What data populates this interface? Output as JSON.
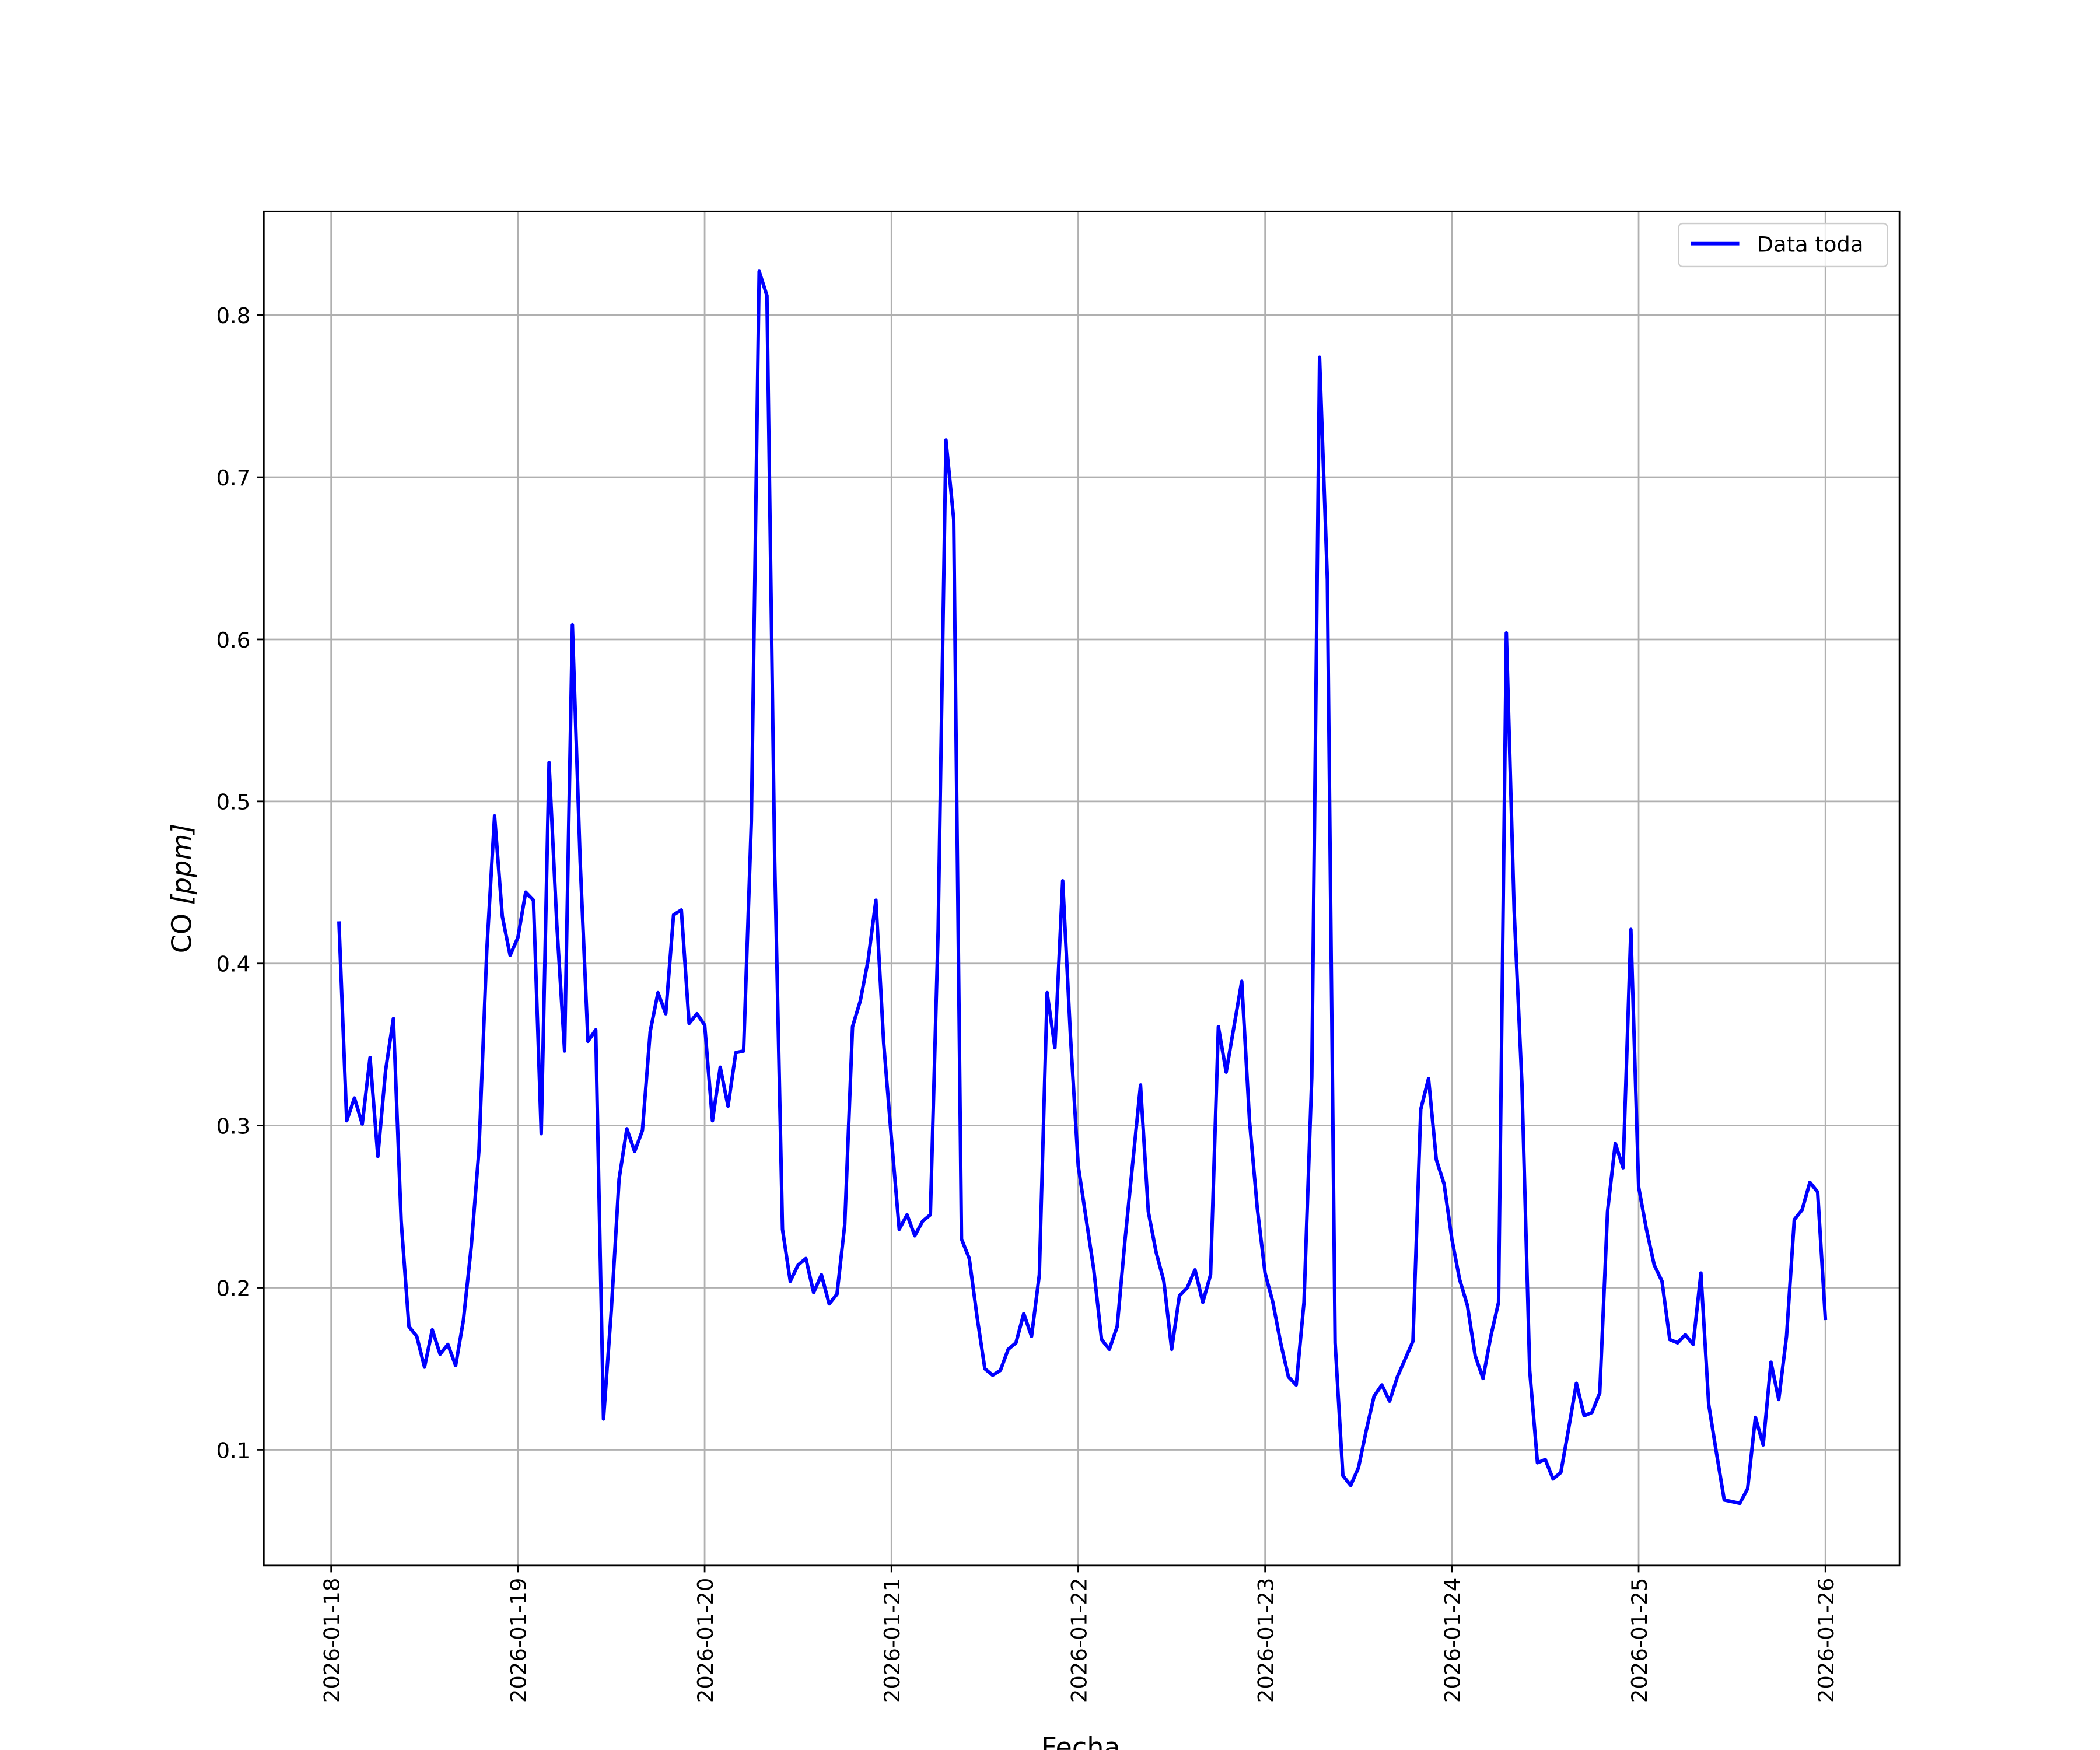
{
  "chart_data": {
    "type": "line",
    "title": "",
    "xlabel": "Fecha",
    "ylabel_main": "CO ",
    "ylabel_unit": "[ppm]",
    "ylim": [
      0.0286,
      0.864
    ],
    "xlim": [
      "2026-01-17 15:00",
      "2026-01-26 10:00"
    ],
    "grid": true,
    "legend_position": "top-right",
    "x_ticks": [
      "2026-01-18",
      "2026-01-19",
      "2026-01-20",
      "2026-01-21",
      "2026-01-22",
      "2026-01-23",
      "2026-01-24",
      "2026-01-25",
      "2026-01-26"
    ],
    "y_ticks": [
      "0.1",
      "0.2",
      "0.3",
      "0.4",
      "0.5",
      "0.6",
      "0.7",
      "0.8"
    ],
    "x_start": "2026-01-18 01:00",
    "x_step_hours": 1,
    "series": [
      {
        "name": "Data toda",
        "color": "#0000ff",
        "values": [
          0.426,
          0.303,
          0.317,
          0.301,
          0.342,
          0.281,
          0.334,
          0.366,
          0.241,
          0.176,
          0.17,
          0.151,
          0.174,
          0.159,
          0.165,
          0.152,
          0.18,
          0.225,
          0.285,
          0.408,
          0.491,
          0.429,
          0.405,
          0.416,
          0.444,
          0.439,
          0.295,
          0.524,
          0.424,
          0.346,
          0.609,
          0.463,
          0.352,
          0.359,
          0.119,
          0.186,
          0.267,
          0.298,
          0.284,
          0.297,
          0.358,
          0.382,
          0.369,
          0.43,
          0.433,
          0.363,
          0.369,
          0.362,
          0.303,
          0.336,
          0.312,
          0.345,
          0.346,
          0.488,
          0.827,
          0.812,
          0.463,
          0.236,
          0.204,
          0.214,
          0.218,
          0.197,
          0.208,
          0.19,
          0.196,
          0.239,
          0.361,
          0.377,
          0.402,
          0.439,
          0.351,
          0.292,
          0.236,
          0.245,
          0.232,
          0.241,
          0.245,
          0.421,
          0.723,
          0.674,
          0.23,
          0.218,
          0.182,
          0.15,
          0.146,
          0.149,
          0.162,
          0.166,
          0.184,
          0.17,
          0.208,
          0.382,
          0.348,
          0.451,
          0.355,
          0.275,
          0.243,
          0.211,
          0.168,
          0.162,
          0.176,
          0.229,
          0.277,
          0.325,
          0.247,
          0.222,
          0.204,
          0.162,
          0.195,
          0.2,
          0.211,
          0.191,
          0.208,
          0.361,
          0.333,
          0.361,
          0.389,
          0.303,
          0.249,
          0.209,
          0.191,
          0.166,
          0.145,
          0.14,
          0.191,
          0.33,
          0.774,
          0.637,
          0.166,
          0.084,
          0.078,
          0.089,
          0.112,
          0.133,
          0.14,
          0.13,
          0.145,
          0.156,
          0.167,
          0.31,
          0.329,
          0.279,
          0.264,
          0.23,
          0.205,
          0.189,
          0.158,
          0.144,
          0.17,
          0.191,
          0.604,
          0.433,
          0.326,
          0.149,
          0.092,
          0.094,
          0.082,
          0.086,
          0.113,
          0.141,
          0.121,
          0.123,
          0.135,
          0.247,
          0.289,
          0.274,
          0.421,
          0.262,
          0.236,
          0.214,
          0.204,
          0.168,
          0.166,
          0.171,
          0.165,
          0.209,
          0.128,
          0.098,
          0.069,
          0.068,
          0.067,
          0.076,
          0.12,
          0.103,
          0.154,
          0.131,
          0.17,
          0.242,
          0.248,
          0.265,
          0.259,
          0.18
        ]
      }
    ]
  }
}
